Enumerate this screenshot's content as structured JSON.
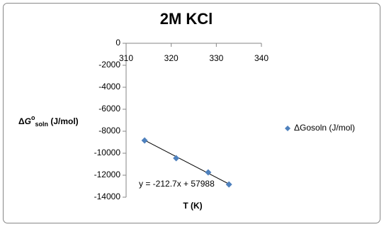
{
  "chart_data": {
    "type": "scatter",
    "title": "2M KCl",
    "x_label": "T (K)",
    "y_label": {
      "prefix": "Δ",
      "symbol": "G",
      "superscript": "o",
      "subscript": "soln",
      "suffix": " (J/mol)"
    },
    "series": [
      {
        "name": "ΔGosoln (J/mol)",
        "color": "#4f81bd",
        "x": [
          314.1,
          321.1,
          328.2,
          332.8
        ],
        "values": [
          -8840,
          -10450,
          -11740,
          -12840
        ]
      }
    ],
    "trendline": {
      "label": "y = -212.7x + 57988",
      "slope": -212.7,
      "intercept": 57988,
      "color": "#000000"
    },
    "xlim": [
      310,
      340
    ],
    "xticks": [
      310,
      320,
      330,
      340
    ],
    "ylim": [
      -14000,
      0
    ],
    "yticks": [
      0,
      -2000,
      -4000,
      -6000,
      -8000,
      -10000,
      -12000,
      -14000
    ],
    "legend": "right",
    "grid": false
  }
}
